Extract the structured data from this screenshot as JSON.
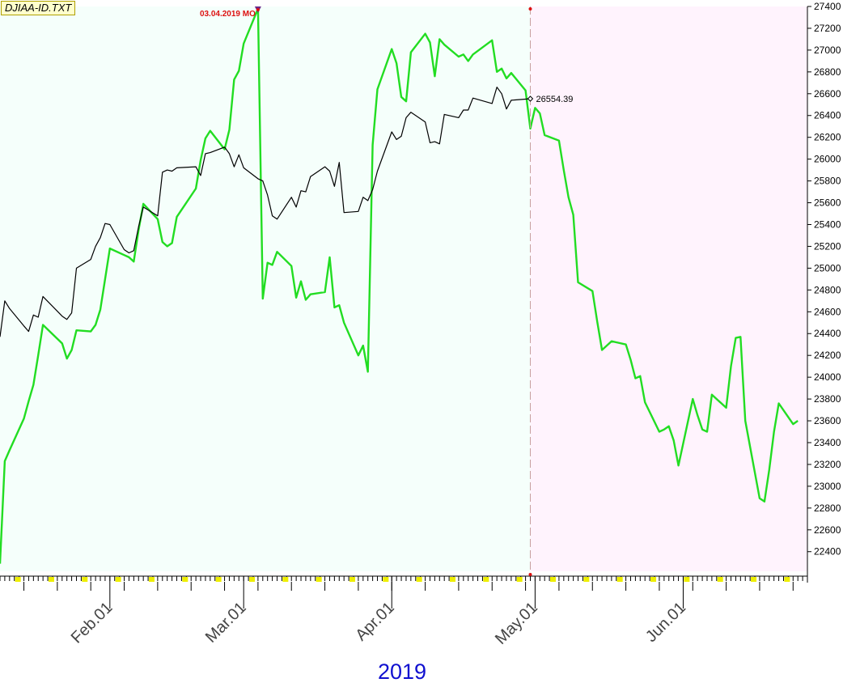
{
  "file_label": "DJIAA-ID.TXT",
  "year_label": "2019",
  "colors": {
    "past_bg": "#f5fffb",
    "future_bg": "#fff3fd",
    "price_line": "#000000",
    "projection_line": "#22dd22",
    "marker": "#dd1111",
    "tick_yellow": "#eeee00"
  },
  "chart_data": {
    "type": "line",
    "title": "",
    "xlabel": "2019",
    "ylabel": "",
    "ylim": [
      22220,
      27400
    ],
    "y_ticks": [
      22400,
      22600,
      22800,
      23000,
      23200,
      23400,
      23600,
      23800,
      24000,
      24200,
      24400,
      24600,
      24800,
      25000,
      25200,
      25400,
      25600,
      25800,
      26000,
      26200,
      26400,
      26600,
      26800,
      27000,
      27200,
      27400
    ],
    "xlim": [
      "2019-01-09",
      "2019-06-27"
    ],
    "x_ticks": [
      {
        "date": "2019-02-01",
        "label": "Feb.01"
      },
      {
        "date": "2019-03-01",
        "label": "Mar.01"
      },
      {
        "date": "2019-04-01",
        "label": "Apr.01"
      },
      {
        "date": "2019-05-01",
        "label": "May.01"
      },
      {
        "date": "2019-06-01",
        "label": "Jun.01"
      }
    ],
    "last_date": "2019-04-30",
    "marker_label": "03.04.2019 MO",
    "marker_date": "2019-03-04",
    "last_value_label": "26554.39",
    "series": [
      {
        "name": "",
        "points": [
          [
            "2019-01-09",
            24370
          ],
          [
            "2019-01-10",
            24700
          ],
          [
            "2019-01-11",
            24630
          ],
          [
            "2019-01-14",
            24470
          ],
          [
            "2019-01-15",
            24420
          ],
          [
            "2019-01-16",
            24570
          ],
          [
            "2019-01-17",
            24550
          ],
          [
            "2019-01-18",
            24740
          ],
          [
            "2019-01-22",
            24560
          ],
          [
            "2019-01-23",
            24530
          ],
          [
            "2019-01-24",
            24590
          ],
          [
            "2019-01-25",
            25000
          ],
          [
            "2019-01-28",
            25080
          ],
          [
            "2019-01-29",
            25200
          ],
          [
            "2019-01-30",
            25280
          ],
          [
            "2019-01-31",
            25410
          ],
          [
            "2019-02-01",
            25400
          ],
          [
            "2019-02-04",
            25170
          ],
          [
            "2019-02-05",
            25140
          ],
          [
            "2019-02-06",
            25160
          ],
          [
            "2019-02-07",
            25380
          ],
          [
            "2019-02-08",
            25560
          ],
          [
            "2019-02-11",
            25480
          ],
          [
            "2019-02-12",
            25880
          ],
          [
            "2019-02-13",
            25900
          ],
          [
            "2019-02-14",
            25890
          ],
          [
            "2019-02-15",
            25920
          ],
          [
            "2019-02-19",
            25930
          ],
          [
            "2019-02-20",
            25850
          ],
          [
            "2019-02-21",
            26050
          ],
          [
            "2019-02-22",
            26060
          ],
          [
            "2019-02-25",
            26110
          ],
          [
            "2019-02-26",
            26050
          ],
          [
            "2019-02-27",
            25930
          ],
          [
            "2019-02-28",
            26040
          ],
          [
            "2019-03-01",
            25920
          ],
          [
            "2019-03-04",
            25820
          ],
          [
            "2019-03-05",
            25800
          ],
          [
            "2019-03-06",
            25670
          ],
          [
            "2019-03-07",
            25480
          ],
          [
            "2019-03-08",
            25450
          ],
          [
            "2019-03-11",
            25650
          ],
          [
            "2019-03-12",
            25560
          ],
          [
            "2019-03-13",
            25710
          ],
          [
            "2019-03-14",
            25700
          ],
          [
            "2019-03-15",
            25840
          ],
          [
            "2019-03-18",
            25930
          ],
          [
            "2019-03-19",
            25890
          ],
          [
            "2019-03-20",
            25750
          ],
          [
            "2019-03-21",
            25970
          ],
          [
            "2019-03-22",
            25510
          ],
          [
            "2019-03-25",
            25520
          ],
          [
            "2019-03-26",
            25650
          ],
          [
            "2019-03-27",
            25620
          ],
          [
            "2019-03-28",
            25720
          ],
          [
            "2019-03-29",
            25890
          ],
          [
            "2019-04-01",
            26250
          ],
          [
            "2019-04-02",
            26180
          ],
          [
            "2019-04-03",
            26210
          ],
          [
            "2019-04-04",
            26380
          ],
          [
            "2019-04-05",
            26430
          ],
          [
            "2019-04-08",
            26340
          ],
          [
            "2019-04-09",
            26150
          ],
          [
            "2019-04-10",
            26160
          ],
          [
            "2019-04-11",
            26140
          ],
          [
            "2019-04-12",
            26410
          ],
          [
            "2019-04-15",
            26380
          ],
          [
            "2019-04-16",
            26450
          ],
          [
            "2019-04-17",
            26450
          ],
          [
            "2019-04-18",
            26560
          ],
          [
            "2019-04-22",
            26510
          ],
          [
            "2019-04-23",
            26660
          ],
          [
            "2019-04-24",
            26600
          ],
          [
            "2019-04-25",
            26460
          ],
          [
            "2019-04-26",
            26540
          ],
          [
            "2019-04-29",
            26550
          ],
          [
            "2019-04-30",
            26554
          ]
        ]
      },
      {
        "name": "",
        "points": [
          [
            "2019-01-09",
            22290
          ],
          [
            "2019-01-10",
            23230
          ],
          [
            "2019-01-11",
            23330
          ],
          [
            "2019-01-14",
            23620
          ],
          [
            "2019-01-15",
            23780
          ],
          [
            "2019-01-16",
            23930
          ],
          [
            "2019-01-17",
            24200
          ],
          [
            "2019-01-18",
            24480
          ],
          [
            "2019-01-22",
            24310
          ],
          [
            "2019-01-23",
            24170
          ],
          [
            "2019-01-24",
            24250
          ],
          [
            "2019-01-25",
            24430
          ],
          [
            "2019-01-28",
            24420
          ],
          [
            "2019-01-29",
            24480
          ],
          [
            "2019-01-30",
            24620
          ],
          [
            "2019-01-31",
            24900
          ],
          [
            "2019-02-01",
            25180
          ],
          [
            "2019-02-04",
            25120
          ],
          [
            "2019-02-05",
            25100
          ],
          [
            "2019-02-06",
            25060
          ],
          [
            "2019-02-07",
            25350
          ],
          [
            "2019-02-08",
            25590
          ],
          [
            "2019-02-11",
            25450
          ],
          [
            "2019-02-12",
            25240
          ],
          [
            "2019-02-13",
            25200
          ],
          [
            "2019-02-14",
            25230
          ],
          [
            "2019-02-15",
            25470
          ],
          [
            "2019-02-19",
            25730
          ],
          [
            "2019-02-20",
            25990
          ],
          [
            "2019-02-21",
            26190
          ],
          [
            "2019-02-22",
            26260
          ],
          [
            "2019-02-25",
            26090
          ],
          [
            "2019-02-26",
            26270
          ],
          [
            "2019-02-27",
            26730
          ],
          [
            "2019-02-28",
            26810
          ],
          [
            "2019-03-01",
            27060
          ],
          [
            "2019-03-04",
            27380
          ],
          [
            "2019-03-05",
            24720
          ],
          [
            "2019-03-06",
            25050
          ],
          [
            "2019-03-07",
            25030
          ],
          [
            "2019-03-08",
            25150
          ],
          [
            "2019-03-11",
            25020
          ],
          [
            "2019-03-12",
            24730
          ],
          [
            "2019-03-13",
            24880
          ],
          [
            "2019-03-14",
            24710
          ],
          [
            "2019-03-15",
            24760
          ],
          [
            "2019-03-18",
            24780
          ],
          [
            "2019-03-19",
            25100
          ],
          [
            "2019-03-20",
            24640
          ],
          [
            "2019-03-21",
            24660
          ],
          [
            "2019-03-22",
            24500
          ],
          [
            "2019-03-25",
            24200
          ],
          [
            "2019-03-26",
            24290
          ],
          [
            "2019-03-27",
            24050
          ],
          [
            "2019-03-28",
            26130
          ],
          [
            "2019-03-29",
            26640
          ],
          [
            "2019-04-01",
            27010
          ],
          [
            "2019-04-02",
            26880
          ],
          [
            "2019-04-03",
            26570
          ],
          [
            "2019-04-04",
            26530
          ],
          [
            "2019-04-05",
            26980
          ],
          [
            "2019-04-08",
            27150
          ],
          [
            "2019-04-09",
            27070
          ],
          [
            "2019-04-10",
            26760
          ],
          [
            "2019-04-11",
            27100
          ],
          [
            "2019-04-12",
            27050
          ],
          [
            "2019-04-15",
            26940
          ],
          [
            "2019-04-16",
            26960
          ],
          [
            "2019-04-17",
            26900
          ],
          [
            "2019-04-18",
            26960
          ],
          [
            "2019-04-22",
            27090
          ],
          [
            "2019-04-23",
            26800
          ],
          [
            "2019-04-24",
            26830
          ],
          [
            "2019-04-25",
            26740
          ],
          [
            "2019-04-26",
            26790
          ],
          [
            "2019-04-29",
            26630
          ],
          [
            "2019-04-30",
            26280
          ],
          [
            "2019-05-01",
            26470
          ],
          [
            "2019-05-02",
            26420
          ],
          [
            "2019-05-03",
            26220
          ],
          [
            "2019-05-06",
            26170
          ],
          [
            "2019-05-07",
            25900
          ],
          [
            "2019-05-08",
            25650
          ],
          [
            "2019-05-09",
            25490
          ],
          [
            "2019-05-10",
            24870
          ],
          [
            "2019-05-13",
            24790
          ],
          [
            "2019-05-14",
            24510
          ],
          [
            "2019-05-15",
            24250
          ],
          [
            "2019-05-16",
            24290
          ],
          [
            "2019-05-17",
            24330
          ],
          [
            "2019-05-20",
            24300
          ],
          [
            "2019-05-21",
            24160
          ],
          [
            "2019-05-22",
            23990
          ],
          [
            "2019-05-23",
            24010
          ],
          [
            "2019-05-24",
            23770
          ],
          [
            "2019-05-27",
            23500
          ],
          [
            "2019-05-28",
            23520
          ],
          [
            "2019-05-29",
            23550
          ],
          [
            "2019-05-30",
            23420
          ],
          [
            "2019-05-31",
            23190
          ],
          [
            "2019-06-03",
            23800
          ],
          [
            "2019-06-04",
            23650
          ],
          [
            "2019-06-05",
            23520
          ],
          [
            "2019-06-06",
            23500
          ],
          [
            "2019-06-07",
            23840
          ],
          [
            "2019-06-10",
            23720
          ],
          [
            "2019-06-11",
            24100
          ],
          [
            "2019-06-12",
            24360
          ],
          [
            "2019-06-13",
            24370
          ],
          [
            "2019-06-14",
            23600
          ],
          [
            "2019-06-17",
            22890
          ],
          [
            "2019-06-18",
            22860
          ],
          [
            "2019-06-19",
            23150
          ],
          [
            "2019-06-20",
            23500
          ],
          [
            "2019-06-21",
            23760
          ],
          [
            "2019-06-24",
            23570
          ],
          [
            "2019-06-25",
            23600
          ]
        ]
      }
    ]
  }
}
